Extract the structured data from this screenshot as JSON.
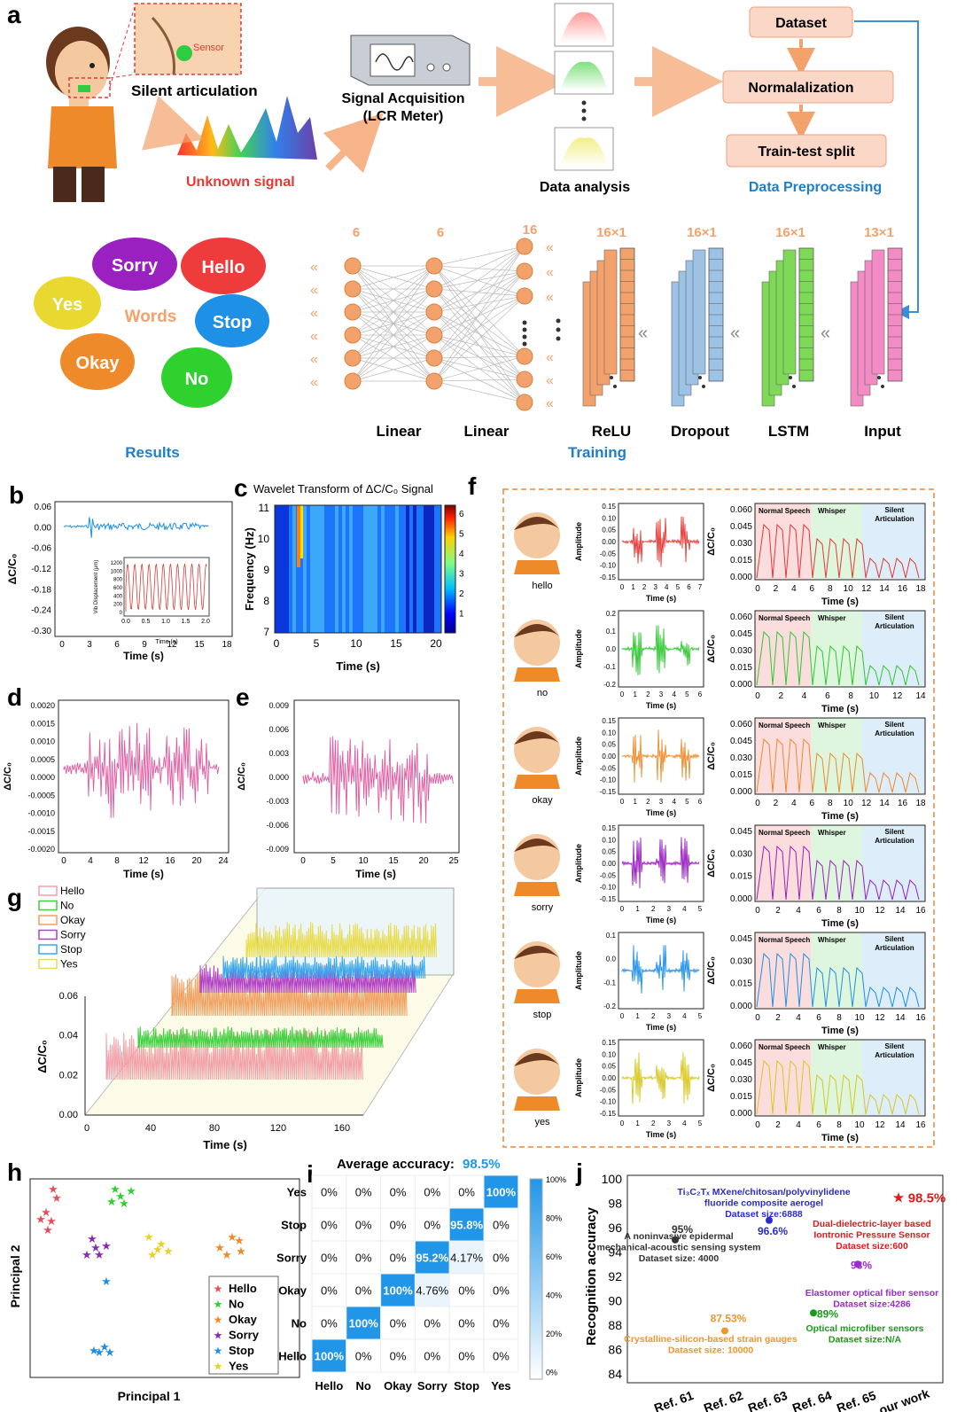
{
  "panel_letters": {
    "a": "a",
    "b": "b",
    "c": "c",
    "d": "d",
    "e": "e",
    "f": "f",
    "g": "g",
    "h": "h",
    "i": "i",
    "j": "j"
  },
  "panel_a": {
    "silent_articulation": "Silent articulation",
    "sensor": "Sensor",
    "unknown_signal": "Unknown signal",
    "acq_line1": "Signal Acquisition",
    "acq_line2": "(LCR Meter)",
    "data_analysis": "Data analysis",
    "dataset": "Dataset",
    "normalization": "Normalalization",
    "split": "Train-test split",
    "data_preprocessing": "Data Preprocessing",
    "words_center": "Words",
    "bubbles": [
      "Sorry",
      "Hello",
      "Yes",
      "Stop",
      "Okay",
      "No"
    ],
    "results": "Results",
    "training": "Training",
    "layer_sizes": [
      "6",
      "6",
      "16",
      "16×1",
      "16×1",
      "16×1",
      "13×1"
    ],
    "layer_names": [
      "Linear",
      "Linear",
      "ReLU",
      "Dropout",
      "LSTM",
      "Input"
    ],
    "colors": {
      "orange": "#f4a26b",
      "blue": "#9cc3e6",
      "green": "#7ed957",
      "pink": "#f38bc4",
      "panel_orange": "#e8873a",
      "title_blue": "#1e7fc8"
    }
  },
  "chart_b": {
    "type": "line",
    "ylabel": "ΔC/C₀",
    "xlabel": "Time (s)",
    "xticks": [
      "0",
      "3",
      "6",
      "9",
      "12",
      "15",
      "18"
    ],
    "yticks": [
      "0.06",
      "0.00",
      "-0.06",
      "-0.12",
      "-0.18",
      "-0.24",
      "-0.30"
    ],
    "inset_xlabel": "Time (s)",
    "inset_ylabel": "Vib Displacement (μm)",
    "inset_xticks": [
      "0.0",
      "0.5",
      "1.0",
      "1.5",
      "2.0"
    ],
    "inset_yticks": [
      "1200",
      "1000",
      "800",
      "600",
      "400",
      "200",
      "0"
    ]
  },
  "chart_c": {
    "type": "heatmap",
    "title": "Wavelet Transform of ΔC/C₀ Signal",
    "xlabel": "Time (s)",
    "ylabel": "Frequency (Hz)",
    "xticks": [
      "0",
      "5",
      "10",
      "15",
      "20"
    ],
    "yticks": [
      "11",
      "10",
      "9",
      "8",
      "7"
    ],
    "colorbar_ticks": [
      "6",
      "5",
      "4",
      "3",
      "2",
      "1"
    ]
  },
  "chart_d": {
    "type": "line",
    "ylabel": "ΔC/C₀",
    "xlabel": "Time (s)",
    "xticks": [
      "0",
      "4",
      "8",
      "12",
      "16",
      "20",
      "24"
    ],
    "yticks": [
      "0.0020",
      "0.0015",
      "0.0010",
      "0.0005",
      "0.0000",
      "-0.0005",
      "-0.0010",
      "-0.0015",
      "-0.0020"
    ]
  },
  "chart_e": {
    "type": "line",
    "ylabel": "ΔC/C₀",
    "xlabel": "Time (s)",
    "xticks": [
      "0",
      "5",
      "10",
      "15",
      "20",
      "25"
    ],
    "yticks": [
      "0.009",
      "0.006",
      "0.003",
      "0.000",
      "-0.003",
      "-0.006",
      "-0.009"
    ]
  },
  "chart_g": {
    "type": "line",
    "ylabel": "ΔC/C₀",
    "xlabel": "Time (s)",
    "xticks": [
      "0",
      "40",
      "80",
      "120",
      "160"
    ],
    "yticks": [
      "0.06",
      "0.04",
      "0.02",
      "0.00"
    ],
    "series": [
      {
        "name": "Hello",
        "color": "#f2a0a8"
      },
      {
        "name": "No",
        "color": "#3dd13d"
      },
      {
        "name": "Okay",
        "color": "#f0a060"
      },
      {
        "name": "Sorry",
        "color": "#b040c8"
      },
      {
        "name": "Stop",
        "color": "#3aa8ec"
      },
      {
        "name": "Yes",
        "color": "#e8dc4a"
      }
    ]
  },
  "panel_f": {
    "rows": [
      {
        "word": "hello",
        "color": "#e53935",
        "t_ticks": [
          "0",
          "1",
          "2",
          "3",
          "4",
          "5",
          "6",
          "7"
        ],
        "a_ticks": [
          "0.15",
          "0.10",
          "0.05",
          "0.00",
          "-0.05",
          "-0.10",
          "-0.15"
        ],
        "c_ticks": [
          "0.060",
          "0.045",
          "0.030",
          "0.015",
          "0.000"
        ],
        "c_xticks": [
          "0",
          "2",
          "4",
          "6",
          "8",
          "10",
          "12",
          "14",
          "16",
          "18"
        ],
        "t_label": "Time (s)"
      },
      {
        "word": "no",
        "color": "#2fc82f",
        "t_ticks": [
          "0",
          "1",
          "2",
          "3",
          "4",
          "5",
          "6"
        ],
        "a_ticks": [
          "0.2",
          "0.1",
          "0.0",
          "-0.1",
          "-0.2"
        ],
        "c_ticks": [
          "0.060",
          "0.045",
          "0.030",
          "0.015",
          "0.000"
        ],
        "c_xticks": [
          "0",
          "2",
          "4",
          "6",
          "8",
          "10",
          "12",
          "14"
        ],
        "t_label": "Time (s)"
      },
      {
        "word": "okay",
        "color": "#ef8a2a",
        "t_ticks": [
          "0",
          "1",
          "2",
          "3",
          "4",
          "5",
          "6"
        ],
        "a_ticks": [
          "0.15",
          "0.10",
          "0.05",
          "0.00",
          "-0.05",
          "-0.10",
          "-0.15"
        ],
        "c_ticks": [
          "0.060",
          "0.045",
          "0.030",
          "0.015",
          "0.000"
        ],
        "c_xticks": [
          "0",
          "2",
          "4",
          "6",
          "8",
          "10",
          "12",
          "14",
          "16",
          "18"
        ],
        "t_label": "Time (s)"
      },
      {
        "word": "sorry",
        "color": "#9a20c0",
        "t_ticks": [
          "0",
          "1",
          "2",
          "3",
          "4",
          "5"
        ],
        "a_ticks": [
          "0.15",
          "0.10",
          "0.05",
          "0.00",
          "-0.05",
          "-0.10",
          "-0.15"
        ],
        "c_ticks": [
          "0.045",
          "0.030",
          "0.015",
          "0.000"
        ],
        "c_xticks": [
          "0",
          "2",
          "4",
          "6",
          "8",
          "10",
          "12",
          "14",
          "16"
        ],
        "t_label": "Time (s)"
      },
      {
        "word": "stop",
        "color": "#1e90e6",
        "t_ticks": [
          "0",
          "1",
          "2",
          "3",
          "4",
          "5"
        ],
        "a_ticks": [
          "0.1",
          "0.0",
          "-0.1",
          "-0.2"
        ],
        "c_ticks": [
          "0.045",
          "0.030",
          "0.015",
          "0.000"
        ],
        "c_xticks": [
          "0",
          "2",
          "4",
          "6",
          "8",
          "10",
          "12",
          "14",
          "16"
        ],
        "t_label": "Time (s)"
      },
      {
        "word": "yes",
        "color": "#d8c820",
        "t_ticks": [
          "0",
          "1",
          "2",
          "3",
          "4",
          "5"
        ],
        "a_ticks": [
          "0.15",
          "0.10",
          "0.05",
          "0.00",
          "-0.05",
          "-0.10",
          "-0.15"
        ],
        "c_ticks": [
          "0.060",
          "0.045",
          "0.030",
          "0.015",
          "0.000"
        ],
        "c_xticks": [
          "0",
          "2",
          "4",
          "6",
          "8",
          "10",
          "12",
          "14",
          "16"
        ],
        "t_label": "Time (s)"
      }
    ],
    "amplitude": "Amplitude",
    "dc": "ΔC/C₀",
    "time": "Time (s)",
    "zones": [
      "Normal Speech",
      "Whisper",
      "Silent",
      "Articulation"
    ]
  },
  "chart_h": {
    "type": "scatter",
    "xlabel": "Principal 1",
    "ylabel": "Principal 2",
    "legend": [
      {
        "name": "Hello",
        "color": "#e94d5a"
      },
      {
        "name": "No",
        "color": "#2ed12e"
      },
      {
        "name": "Okay",
        "color": "#ef8a2a"
      },
      {
        "name": "Sorry",
        "color": "#8c2ab8"
      },
      {
        "name": "Stop",
        "color": "#1e90e6"
      },
      {
        "name": "Yes",
        "color": "#e8d22a"
      }
    ]
  },
  "chart_data": {
    "type": "heatmap",
    "title_prefix": "Average accuracy: ",
    "title_value": "98.5%",
    "rows": [
      "Yes",
      "Stop",
      "Sorry",
      "Okay",
      "No",
      "Hello"
    ],
    "cols": [
      "Hello",
      "No",
      "Okay",
      "Sorry",
      "Stop",
      "Yes"
    ],
    "cells": [
      [
        "0%",
        "0%",
        "0%",
        "0%",
        "0%",
        "100%"
      ],
      [
        "0%",
        "0%",
        "0%",
        "0%",
        "95.8%",
        "0%"
      ],
      [
        "0%",
        "0%",
        "0%",
        "95.2%",
        "4.17%",
        "0%"
      ],
      [
        "0%",
        "0%",
        "100%",
        "4.76%",
        "0%",
        "0%"
      ],
      [
        "0%",
        "100%",
        "0%",
        "0%",
        "0%",
        "0%"
      ],
      [
        "100%",
        "0%",
        "0%",
        "0%",
        "0%",
        "0%"
      ]
    ],
    "values": [
      [
        0,
        0,
        0,
        0,
        0,
        100
      ],
      [
        0,
        0,
        0,
        0,
        95.8,
        0
      ],
      [
        0,
        0,
        0,
        95.2,
        4.17,
        0
      ],
      [
        0,
        0,
        100,
        4.76,
        0,
        0
      ],
      [
        0,
        100,
        0,
        0,
        0,
        0
      ],
      [
        100,
        0,
        0,
        0,
        0,
        0
      ]
    ],
    "colorbar_ticks": [
      "100%",
      "80%",
      "60%",
      "40%",
      "20%",
      "0%"
    ]
  },
  "chart_j": {
    "type": "scatter",
    "ylabel": "Recognition accuracy",
    "yticks": [
      "100",
      "98",
      "96",
      "94",
      "92",
      "90",
      "88",
      "86",
      "84"
    ],
    "categories": [
      "Ref. 61",
      "Ref. 62",
      "Ref. 63",
      "Ref. 64",
      "Ref. 65",
      "our work"
    ],
    "points": [
      {
        "ref": "Ref. 61",
        "value": 95,
        "label": "95%",
        "color": "#333333",
        "desc": [
          "A noninvasive epidermal",
          "mechanical-acoustic sensing system",
          "Dataset size: 4000"
        ]
      },
      {
        "ref": "Ref. 62",
        "value": 87.53,
        "label": "87.53%",
        "color": "#f0962a",
        "desc": [
          "Crystalline-silicon-based strain gauges",
          "Dataset size: 10000"
        ]
      },
      {
        "ref": "Ref. 63",
        "value": 96.6,
        "label": "96.6%",
        "color": "#2a2ad0",
        "desc": [
          "Ti₃C₂Tₓ MXene/chitosan/polyvinylidene",
          "fluoride composite aerogel",
          "Dataset size:6888"
        ]
      },
      {
        "ref": "Ref. 64",
        "value": 89,
        "label": "89%",
        "color": "#1a9a1a",
        "desc": [
          "Optical microfiber sensors",
          "Dataset size:N/A"
        ]
      },
      {
        "ref": "Ref. 65",
        "value": 93,
        "label": "93%",
        "color": "#9a2ad0",
        "desc": [
          "Elastomer optical fiber sensor",
          "Dataset size:4286"
        ]
      },
      {
        "ref": "our work",
        "value": 98.5,
        "label": "98.5%",
        "color": "#e01a1a",
        "desc": [
          "Dual-dielectric-layer based",
          "Iontronic Pressure Sensor",
          "Dataset size:600"
        ]
      }
    ]
  }
}
